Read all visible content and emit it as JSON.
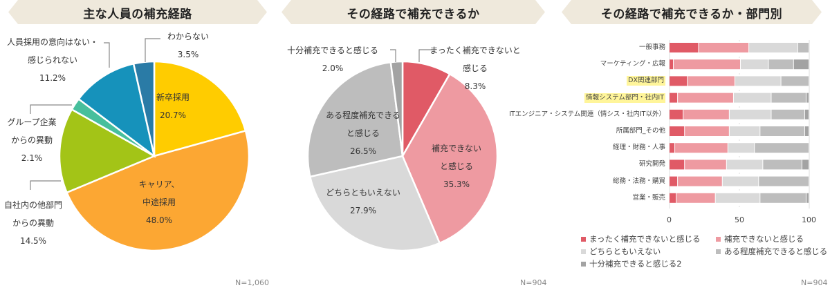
{
  "colors": {
    "banner_bg": "#efe9dc",
    "pie1": [
      "#ffcc00",
      "#fca733",
      "#a3c417",
      "#47bf9c",
      "#1692bb",
      "#2a7ba6"
    ],
    "pie2": [
      "#e05a66",
      "#ee9aa1",
      "#d9d9d9",
      "#bdbdbd",
      "#a3a3a3"
    ],
    "bars": [
      "#e05a66",
      "#ee9aa1",
      "#d9d9d9",
      "#bdbdbd",
      "#a3a3a3"
    ]
  },
  "panels": [
    {
      "title": "主な人員の補充経路",
      "n": "N=1,060"
    },
    {
      "title": "その経路で補充できるか",
      "n": "N=904"
    },
    {
      "title": "その経路で補充できるか・部門別",
      "n": "N=904"
    }
  ],
  "chart_data": [
    {
      "type": "pie",
      "title": "主な人員の補充経路",
      "categories": [
        "新卒採用",
        "キャリア、中途採用",
        "自社内の他部門からの異動",
        "グループ企業からの異動",
        "人員採用の意向はない・感じられない",
        "わからない"
      ],
      "values": [
        20.7,
        48.0,
        14.5,
        2.1,
        11.2,
        3.5
      ],
      "unit": "%",
      "n": "N=1,060"
    },
    {
      "type": "pie",
      "title": "その経路で補充できるか",
      "categories": [
        "まったく補充できないと感じる",
        "補充できないと感じる",
        "どちらともいえない",
        "ある程度補充できると感じる",
        "十分補充できると感じる"
      ],
      "values": [
        8.3,
        35.3,
        27.9,
        26.5,
        2.0
      ],
      "unit": "%",
      "n": "N=904"
    },
    {
      "type": "bar",
      "orientation": "horizontal",
      "stacked": true,
      "title": "その経路で補充できるか・部門別",
      "categories": [
        "一般事務",
        "マーケティング・広報",
        "DX関連部門",
        "情報システム部門・社内IT",
        "ITエンジニア・システム関連（情シス・社内IT以外）",
        "所属部門_その他",
        "経理・財務・人事",
        "研究開発",
        "総務・法務・購買",
        "営業・販売"
      ],
      "highlighted": [
        "DX関連部門",
        "情報システム部門・社内IT"
      ],
      "series": [
        {
          "name": "まったく補充できないと感じる",
          "values": [
            21,
            3,
            13,
            6,
            10,
            11,
            4,
            11,
            6,
            5
          ]
        },
        {
          "name": "補充できないと感じる",
          "values": [
            36,
            48,
            34,
            40,
            33,
            32,
            38,
            30,
            32,
            28
          ]
        },
        {
          "name": "どちらともいえない",
          "values": [
            35,
            20,
            33,
            27,
            30,
            22,
            19,
            26,
            26,
            32
          ]
        },
        {
          "name": "ある程度補充できると感じる",
          "values": [
            8,
            18,
            20,
            25,
            24,
            32,
            39,
            28,
            36,
            33
          ]
        },
        {
          "name": "十分補充できると感じる2",
          "values": [
            0,
            11,
            0,
            2,
            3,
            3,
            0,
            5,
            0,
            2
          ]
        }
      ],
      "xticks": [
        "0",
        "50",
        "100"
      ],
      "xlim": [
        0,
        100
      ],
      "legend_position": "bottom",
      "n": "N=904"
    }
  ],
  "pie1_labels": {
    "shinsotsu": [
      "新卒採用",
      "20.7%"
    ],
    "career": [
      "キャリア、",
      "中途採用",
      "48.0%"
    ],
    "jisha": [
      "自社内の他部門",
      "からの異動",
      "14.5%"
    ],
    "group": [
      "グループ企業",
      "からの異動",
      "2.1%"
    ],
    "nointent": [
      "人員採用の意向はない・",
      "感じられない",
      "11.2%"
    ],
    "unknown": [
      "わからない",
      "3.5%"
    ]
  },
  "pie2_labels": {
    "mattaku": [
      "まったく補充できないと",
      "感じる",
      "8.3%"
    ],
    "dekinai": [
      "補充できない",
      "と感じる",
      "35.3%"
    ],
    "dochira": [
      "どちらともいえない",
      "27.9%"
    ],
    "aruteido": [
      "ある程度補充できる",
      "と感じる",
      "26.5%"
    ],
    "juubun": [
      "十分補充できると感じる",
      "2.0%"
    ]
  },
  "bar_legend": [
    "まったく補充できないと感じる",
    "補充できないと感じる",
    "どちらともいえない",
    "ある程度補充できると感じる",
    "十分補充できると感じる2"
  ],
  "bar_labels": [
    "一般事務",
    "マーケティング・広報",
    "DX関連部門",
    "情報システム部門・社内IT",
    "ITエンジニア・システム関連（情シス・社内IT以外）",
    "所属部門_その他",
    "経理・財務・人事",
    "研究開発",
    "総務・法務・購買",
    "営業・販売"
  ],
  "ticks": [
    "0",
    "50",
    "100"
  ]
}
